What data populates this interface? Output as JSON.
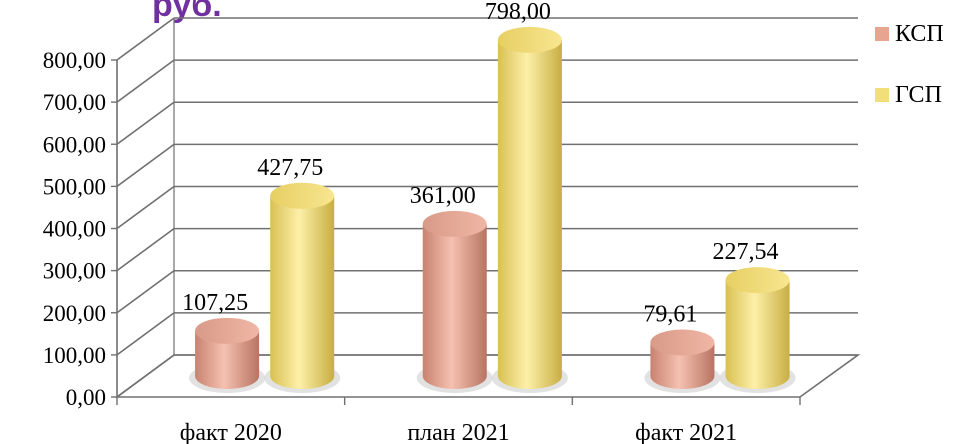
{
  "corner_text": "руб.",
  "chart_data": {
    "type": "bar",
    "categories": [
      "факт 2020",
      "план 2021",
      "факт 2021"
    ],
    "series": [
      {
        "name": "КСП",
        "values": [
          107.25,
          361.0,
          79.61
        ],
        "labels": [
          "107,25",
          "361,00",
          "79,61"
        ],
        "color": "#e6a491"
      },
      {
        "name": "ГСП",
        "values": [
          427.75,
          798.0,
          227.54
        ],
        "labels": [
          "427,75",
          "798,00",
          "227,54"
        ],
        "color": "#f3df79"
      }
    ],
    "ylim": [
      0,
      800
    ],
    "y_ticks": [
      0,
      100,
      200,
      300,
      400,
      500,
      600,
      700,
      800
    ],
    "y_tick_labels": [
      "0,00",
      "100,00",
      "200,00",
      "300,00",
      "400,00",
      "500,00",
      "600,00",
      "700,00",
      "800,00"
    ],
    "grid": true,
    "legend": "right",
    "style": "3d-cylinder"
  }
}
